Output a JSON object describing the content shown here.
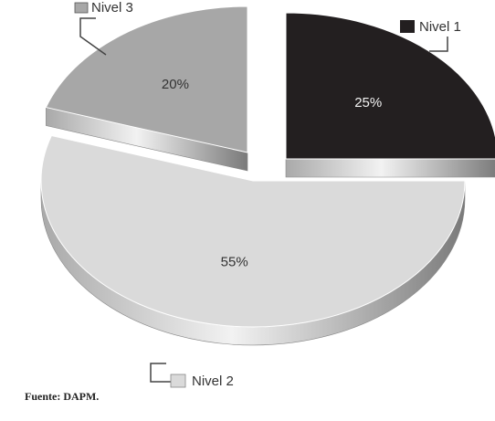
{
  "chart_data": {
    "type": "pie",
    "title": "",
    "exploded_3d": true,
    "slices": [
      {
        "name": "Nivel 1",
        "value": 25,
        "label": "25%",
        "color": "#231f20",
        "legend_position": "top-right"
      },
      {
        "name": "Nivel 2",
        "value": 55,
        "label": "55%",
        "color": "#dadada",
        "legend_position": "bottom"
      },
      {
        "name": "Nivel 3",
        "value": 20,
        "label": "20%",
        "color": "#a7a7a7",
        "legend_position": "top-left"
      }
    ]
  },
  "source": "Fuente: DAPM."
}
